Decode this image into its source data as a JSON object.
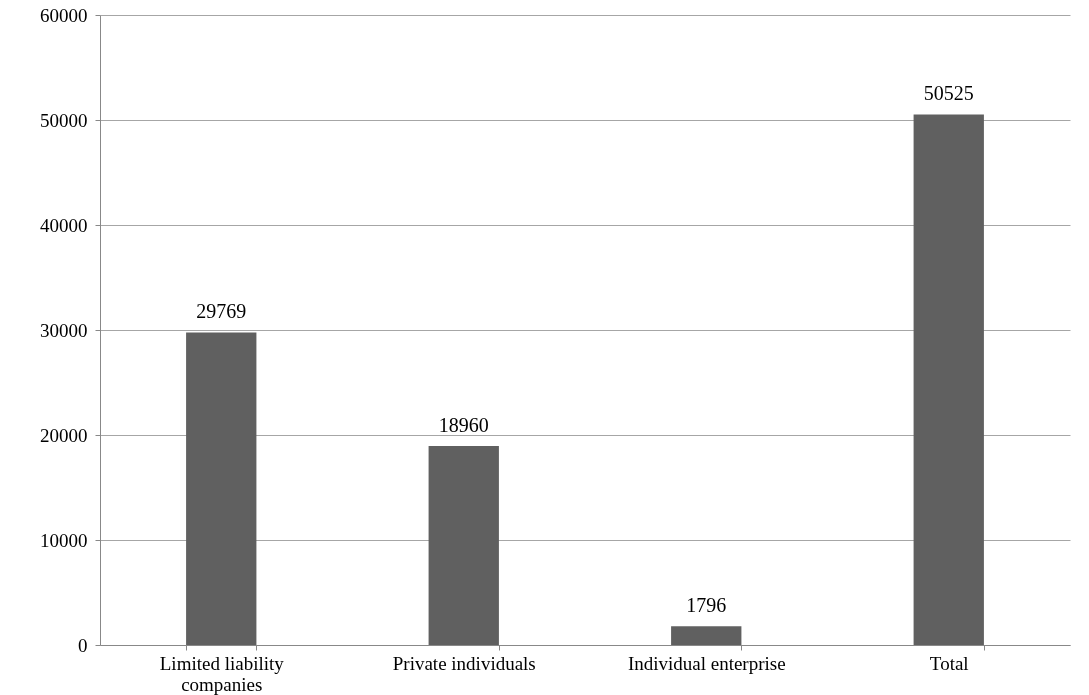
{
  "chart_data": {
    "type": "bar",
    "categories": [
      "Limited liability companies",
      "Private individuals",
      "Individual enterprise",
      "Total"
    ],
    "values": [
      29769,
      18960,
      1796,
      50525
    ],
    "color": "#606060",
    "ylim": [
      0,
      60000
    ],
    "yticks": [
      0,
      10000,
      20000,
      30000,
      40000,
      50000,
      60000
    ],
    "grid": "y",
    "data_labels": true
  }
}
